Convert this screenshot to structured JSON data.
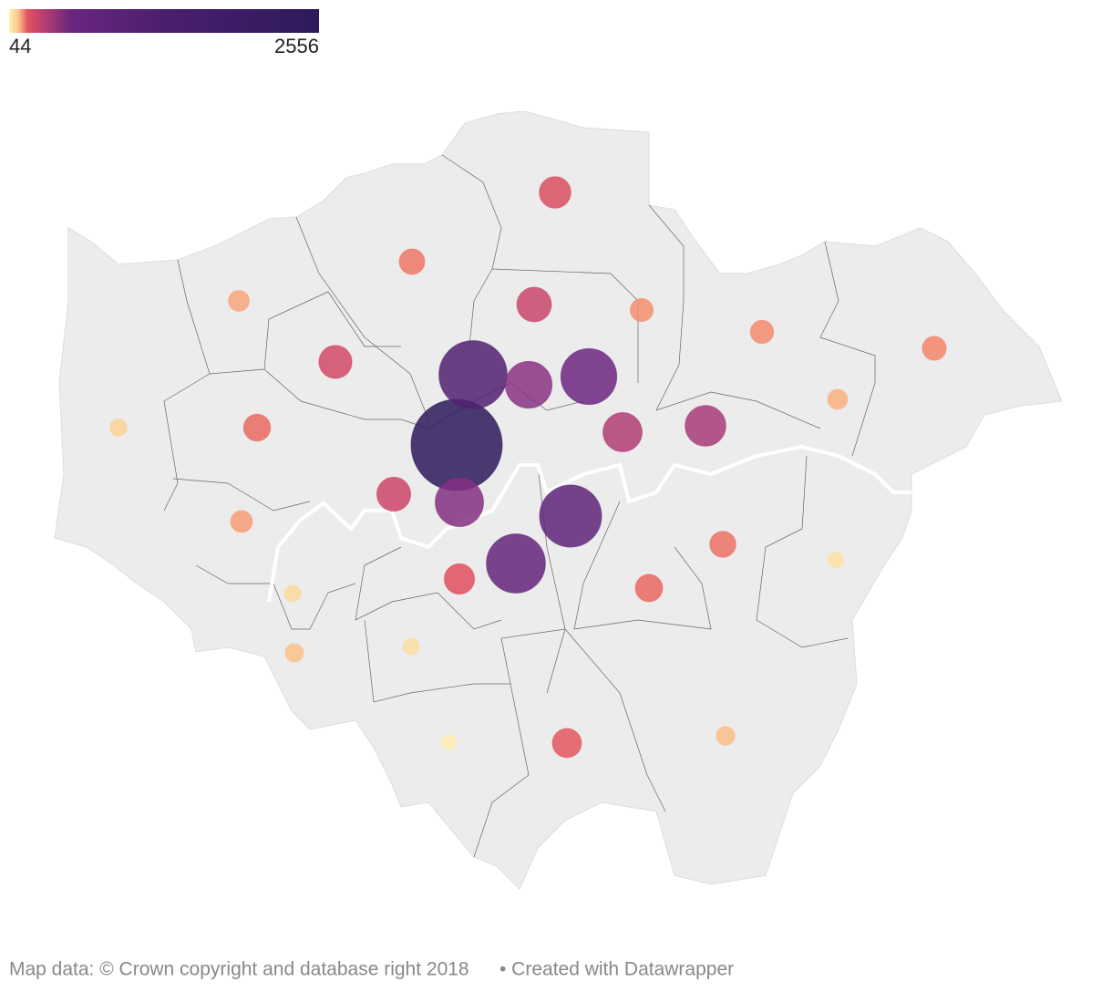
{
  "legend": {
    "min": 44,
    "max": 2556
  },
  "symbols": {
    "values": [
      600,
      400,
      250,
      700,
      320,
      330,
      350,
      650,
      1800,
      1100,
      1400,
      220,
      130,
      450,
      850,
      900,
      2556,
      680,
      1150,
      1600,
      280,
      420,
      90,
      1500,
      560,
      460,
      110,
      170,
      100,
      60,
      520,
      180
    ]
  },
  "footer": {
    "source": "Map data: © Crown copyright and database right 2018",
    "credit": "• Created with Datawrapper"
  }
}
